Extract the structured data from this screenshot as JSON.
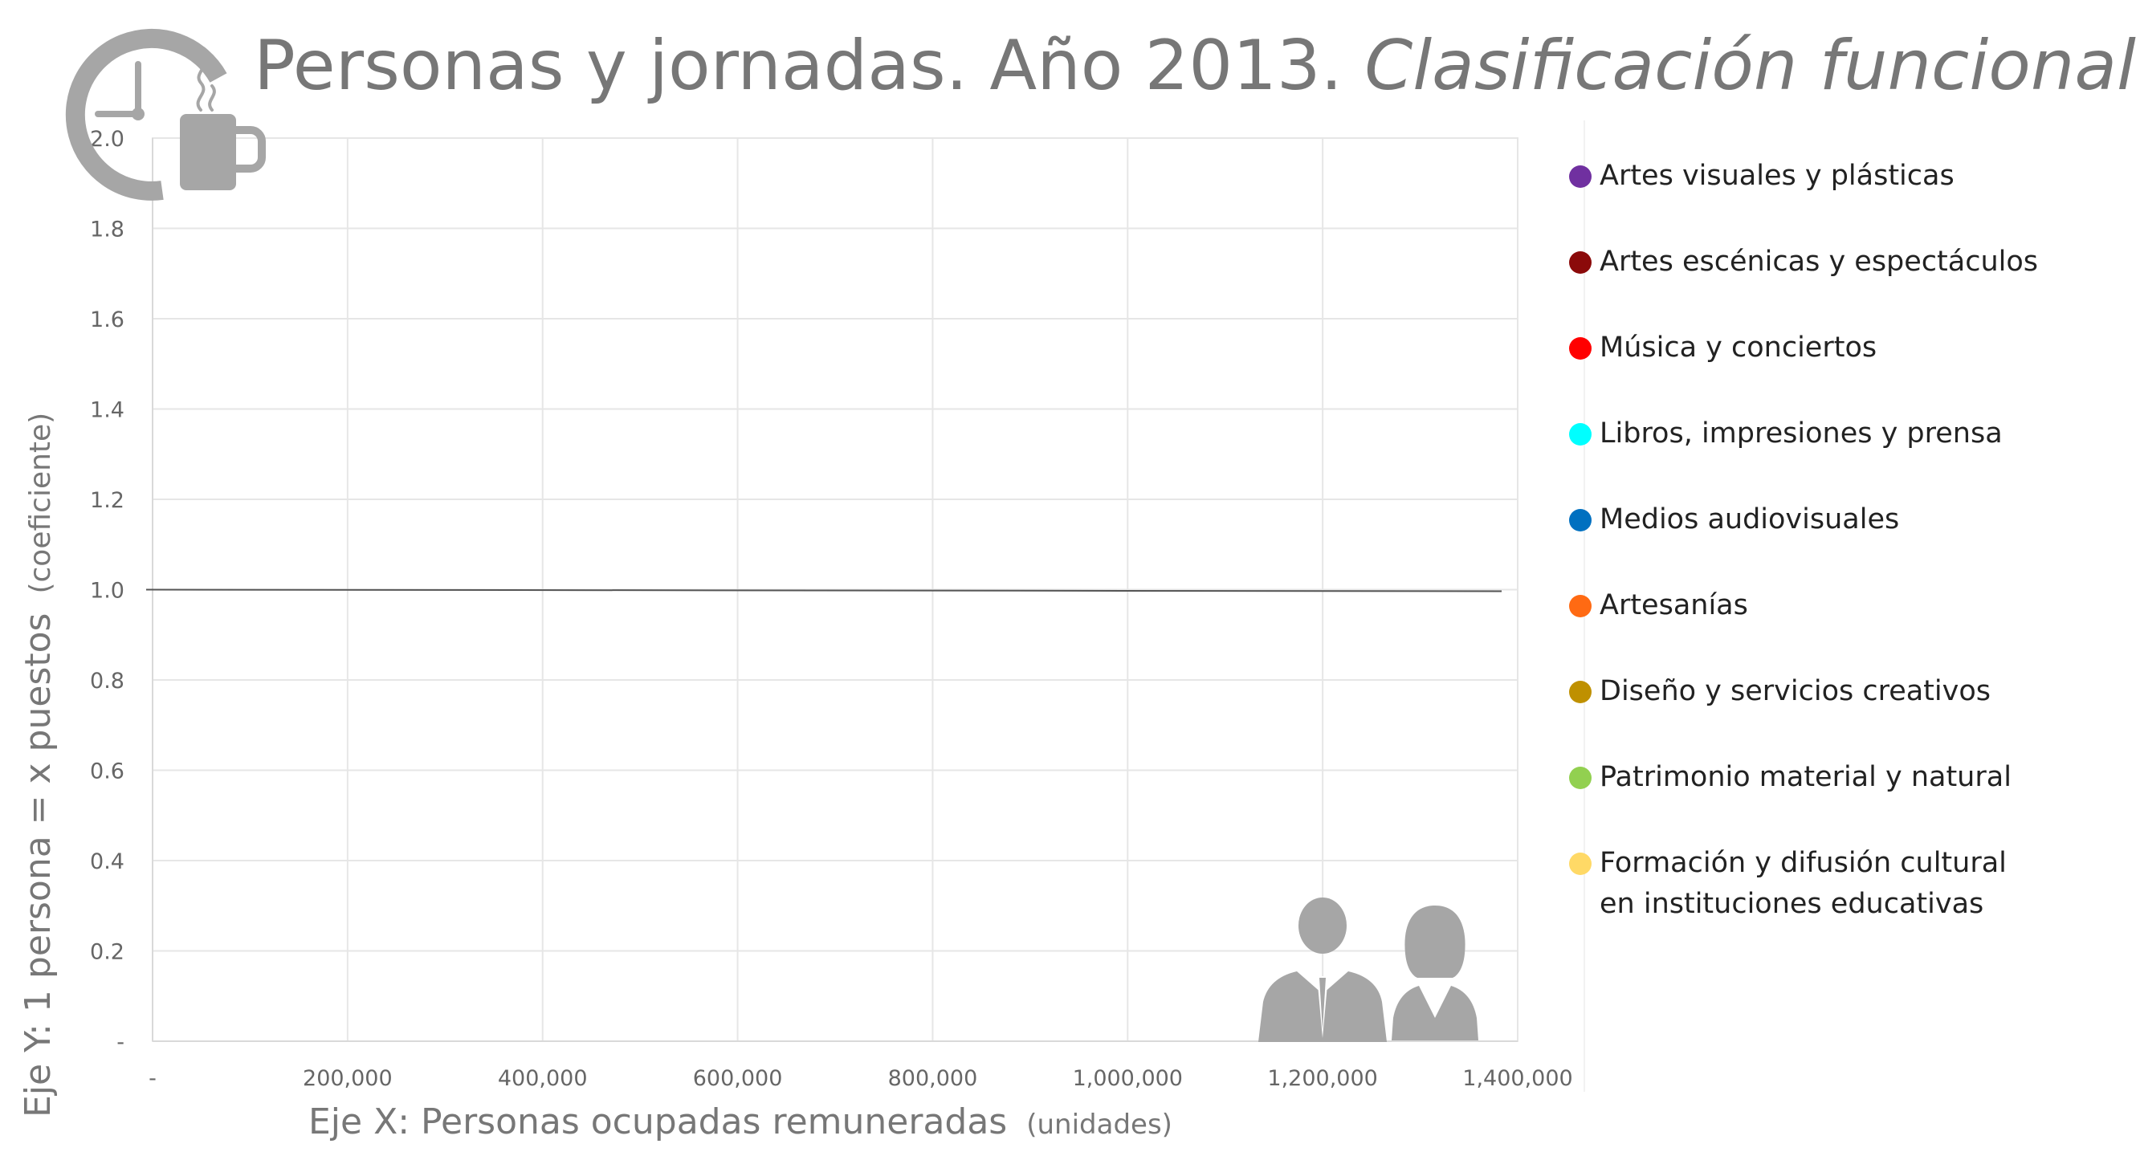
{
  "title": {
    "main": "Personas y jornadas. Año 2013.",
    "italic": "Clasificación funcional"
  },
  "colors": {
    "text_gray": "#777777",
    "axis_text": "#666666",
    "grid": "#e6e6e6",
    "line": "#555555",
    "icon_gray": "#a6a6a6"
  },
  "icons": {
    "logo": "clock-coffee-icon",
    "people": "people-icon"
  },
  "chart_data": {
    "type": "scatter",
    "title": "Personas y jornadas. Año 2013. Clasificación funcional",
    "xlabel": "Eje X: Personas ocupadas remuneradas",
    "xlabel_unit": "(unidades)",
    "ylabel": "Eje Y: 1 persona = x puestos",
    "ylabel_unit": "(coeficiente)",
    "xlim": [
      0,
      1400000
    ],
    "ylim": [
      0,
      2.0
    ],
    "x_ticks": [
      {
        "value": 0,
        "label": "-"
      },
      {
        "value": 200000,
        "label": "200,000"
      },
      {
        "value": 400000,
        "label": "400,000"
      },
      {
        "value": 600000,
        "label": "600,000"
      },
      {
        "value": 800000,
        "label": "800,000"
      },
      {
        "value": 1000000,
        "label": "1,000,000"
      },
      {
        "value": 1200000,
        "label": "1,200,000"
      },
      {
        "value": 1400000,
        "label": "1,400,000"
      }
    ],
    "y_ticks": [
      {
        "value": 0,
        "label": "-"
      },
      {
        "value": 0.2,
        "label": "0.2"
      },
      {
        "value": 0.4,
        "label": "0.4"
      },
      {
        "value": 0.6,
        "label": "0.6"
      },
      {
        "value": 0.8,
        "label": "0.8"
      },
      {
        "value": 1.0,
        "label": "1.0"
      },
      {
        "value": 1.2,
        "label": "1.2"
      },
      {
        "value": 1.4,
        "label": "1.4"
      },
      {
        "value": 1.6,
        "label": "1.6"
      },
      {
        "value": 1.8,
        "label": "1.8"
      },
      {
        "value": 2.0,
        "label": "2.0"
      }
    ],
    "grid": true,
    "reference_line": {
      "y_start": 1.0,
      "y_end": 1.0,
      "x_start": 0,
      "x_end": 1400000
    },
    "series": [
      {
        "name": "Artes visuales y plásticas",
        "color": "#7030a0",
        "points": []
      },
      {
        "name": "Artes escénicas y espectáculos",
        "color": "#8b0a0a",
        "points": []
      },
      {
        "name": "Música y conciertos",
        "color": "#ff0000",
        "points": []
      },
      {
        "name": "Libros, impresiones y prensa",
        "color": "#00ffff",
        "points": []
      },
      {
        "name": "Medios audiovisuales",
        "color": "#0070c0",
        "points": []
      },
      {
        "name": "Artesanías",
        "color": "#ff6a13",
        "points": []
      },
      {
        "name": "Diseño y servicios creativos",
        "color": "#bf9000",
        "points": []
      },
      {
        "name": "Patrimonio material y natural",
        "color": "#92d050",
        "points": []
      },
      {
        "name": "Formación y difusión cultural en instituciones educativas",
        "color": "#ffd966",
        "points": []
      }
    ],
    "legend_position": "right"
  }
}
